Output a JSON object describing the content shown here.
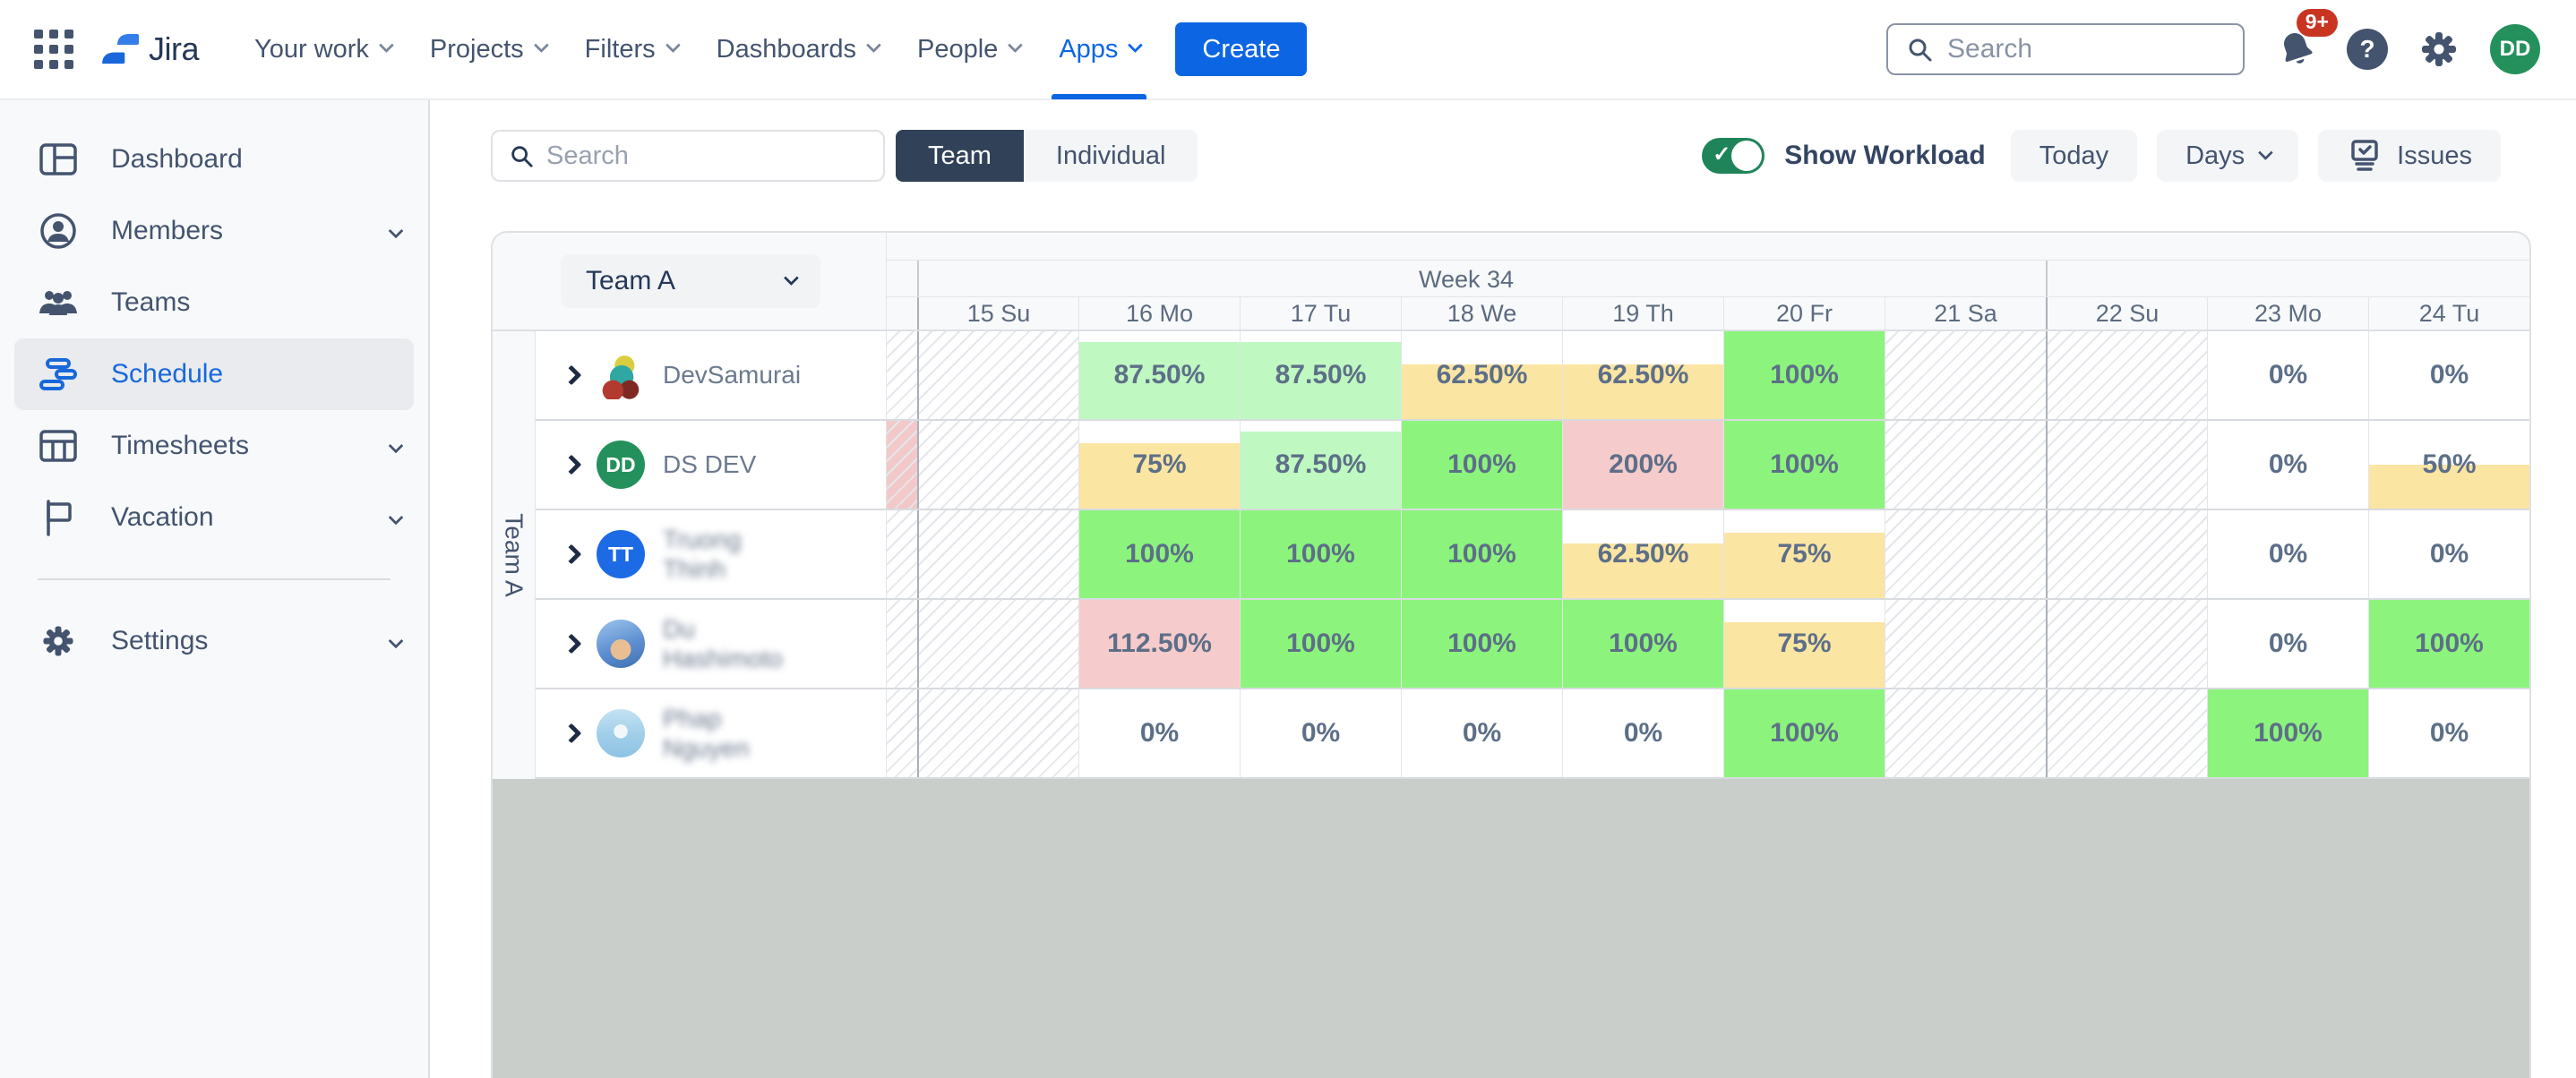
{
  "nav": {
    "logo": "Jira",
    "items": [
      {
        "label": "Your work",
        "dropdown": true
      },
      {
        "label": "Projects",
        "dropdown": true
      },
      {
        "label": "Filters",
        "dropdown": true
      },
      {
        "label": "Dashboards",
        "dropdown": true
      },
      {
        "label": "People",
        "dropdown": true
      },
      {
        "label": "Apps",
        "dropdown": true,
        "active": true
      }
    ],
    "create_label": "Create",
    "search_placeholder": "Search",
    "notifications_badge": "9+",
    "user_initials": "DD"
  },
  "sidebar": {
    "items": [
      {
        "label": "Dashboard",
        "icon": "dashboard-icon"
      },
      {
        "label": "Members",
        "icon": "members-icon",
        "expandable": true
      },
      {
        "label": "Teams",
        "icon": "teams-icon"
      },
      {
        "label": "Schedule",
        "icon": "schedule-icon",
        "active": true
      },
      {
        "label": "Timesheets",
        "icon": "timesheets-icon",
        "expandable": true
      },
      {
        "label": "Vacation",
        "icon": "vacation-icon",
        "expandable": true
      },
      {
        "divider": true
      },
      {
        "label": "Settings",
        "icon": "settings-icon",
        "expandable": true
      }
    ]
  },
  "toolbar": {
    "search_placeholder": "Search",
    "view_toggle": [
      {
        "label": "Team",
        "selected": true
      },
      {
        "label": "Individual",
        "selected": false
      }
    ],
    "show_workload": {
      "label": "Show Workload",
      "on": true
    },
    "today_label": "Today",
    "days_label": "Days",
    "issues_label": "Issues"
  },
  "schedule": {
    "team_selector": "Team A",
    "group_label": "Team A",
    "weeks": [
      {
        "label": "Week 34"
      }
    ],
    "days": [
      {
        "label": "15 Su",
        "weekend": true,
        "week_start": true
      },
      {
        "label": "16 Mo"
      },
      {
        "label": "17 Tu"
      },
      {
        "label": "18 We"
      },
      {
        "label": "19 Th"
      },
      {
        "label": "20 Fr"
      },
      {
        "label": "21 Sa",
        "weekend": true
      },
      {
        "label": "22 Su",
        "weekend": true,
        "week_start": true
      },
      {
        "label": "23 Mo"
      },
      {
        "label": "24 Tu"
      }
    ],
    "members": [
      {
        "name": "DevSamurai",
        "avatar": "logo",
        "lead": null,
        "blurred": false,
        "cells": [
          null,
          {
            "label": "87.50%",
            "value": 87.5
          },
          {
            "label": "87.50%",
            "value": 87.5
          },
          {
            "label": "62.50%",
            "value": 62.5
          },
          {
            "label": "62.50%",
            "value": 62.5
          },
          {
            "label": "100%",
            "value": 100
          },
          null,
          null,
          {
            "label": "0%",
            "value": 0
          },
          {
            "label": "0%",
            "value": 0
          }
        ]
      },
      {
        "name": "DS DEV",
        "avatar": "initials",
        "initials": "DD",
        "avatar_color": "#24915C",
        "lead": "overload",
        "blurred": false,
        "cells": [
          null,
          {
            "label": "75%",
            "value": 75
          },
          {
            "label": "87.50%",
            "value": 87.5
          },
          {
            "label": "100%",
            "value": 100
          },
          {
            "label": "200%",
            "value": 200
          },
          {
            "label": "100%",
            "value": 100
          },
          null,
          null,
          {
            "label": "0%",
            "value": 0
          },
          {
            "label": "50%",
            "value": 50
          }
        ]
      },
      {
        "name": "Truong\nThinh",
        "avatar": "initials",
        "initials": "TT",
        "avatar_color": "#1D6AE5",
        "lead": null,
        "blurred": true,
        "cells": [
          null,
          {
            "label": "100%",
            "value": 100
          },
          {
            "label": "100%",
            "value": 100
          },
          {
            "label": "100%",
            "value": 100
          },
          {
            "label": "62.50%",
            "value": 62.5
          },
          {
            "label": "75%",
            "value": 75
          },
          null,
          null,
          {
            "label": "0%",
            "value": 0
          },
          {
            "label": "0%",
            "value": 0
          }
        ]
      },
      {
        "name": "Du\nHashimoto",
        "avatar": "photo-blue",
        "lead": null,
        "blurred": true,
        "cells": [
          null,
          {
            "label": "112.50%",
            "value": 112.5
          },
          {
            "label": "100%",
            "value": 100
          },
          {
            "label": "100%",
            "value": 100
          },
          {
            "label": "100%",
            "value": 100
          },
          {
            "label": "75%",
            "value": 75
          },
          null,
          null,
          {
            "label": "0%",
            "value": 0
          },
          {
            "label": "100%",
            "value": 100
          }
        ]
      },
      {
        "name": "Phap\nNguyen",
        "avatar": "photo-light",
        "lead": null,
        "blurred": true,
        "cells": [
          null,
          {
            "label": "0%",
            "value": 0
          },
          {
            "label": "0%",
            "value": 0
          },
          {
            "label": "0%",
            "value": 0
          },
          {
            "label": "0%",
            "value": 0
          },
          {
            "label": "100%",
            "value": 100
          },
          null,
          null,
          {
            "label": "100%",
            "value": 100
          },
          {
            "label": "0%",
            "value": 0
          }
        ]
      }
    ]
  },
  "colors": {
    "accent_blue": "#0C66E4",
    "toggle_green": "#1F845A",
    "workload_green": "#8CF47C",
    "workload_light_green": "#BFF8C0",
    "workload_yellow": "#FBE5A3",
    "workload_overload_pink": "#F6CBCB",
    "empty_area_gray": "#C9CECB"
  }
}
